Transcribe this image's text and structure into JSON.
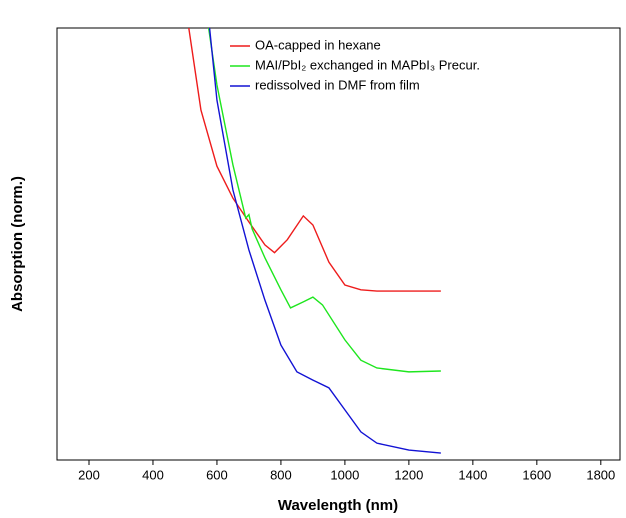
{
  "chart_data": {
    "type": "line",
    "x_label": "Wavelength (nm)",
    "y_label": "Absorption (norm.)",
    "xlim": [
      100,
      1860
    ],
    "xticks": [
      200,
      400,
      600,
      800,
      1000,
      1200,
      1400,
      1600,
      1800
    ],
    "ylim": [
      0,
      1
    ],
    "legend": "top-right",
    "series": [
      {
        "name": "OA-capped in hexane",
        "color": "#ee1c1c",
        "x": [
          512,
          550,
          600,
          650,
          700,
          750,
          780,
          820,
          870,
          900,
          950,
          1000,
          1050,
          1100,
          1200,
          1300
        ],
        "values": [
          1.0,
          0.81,
          0.68,
          0.606,
          0.551,
          0.498,
          0.48,
          0.51,
          0.565,
          0.544,
          0.458,
          0.405,
          0.394,
          0.391,
          0.391,
          0.391
        ]
      },
      {
        "name": "MAI/PbI₂ exchanged in MAPbI₃ Precur.",
        "color": "#1ee61e",
        "x": [
          574,
          600,
          650,
          690,
          700,
          710,
          750,
          800,
          830,
          870,
          900,
          930,
          1000,
          1050,
          1100,
          1200,
          1300
        ],
        "values": [
          1.0,
          0.868,
          0.683,
          0.56,
          0.568,
          0.535,
          0.468,
          0.394,
          0.352,
          0.366,
          0.377,
          0.359,
          0.278,
          0.231,
          0.213,
          0.204,
          0.206
        ]
      },
      {
        "name": "redissolved in DMF from film",
        "color": "#1212d4",
        "x": [
          577,
          600,
          650,
          700,
          750,
          800,
          850,
          900,
          950,
          1000,
          1050,
          1100,
          1200,
          1300
        ],
        "values": [
          1.0,
          0.833,
          0.625,
          0.486,
          0.37,
          0.266,
          0.204,
          0.185,
          0.167,
          0.116,
          0.065,
          0.039,
          0.023,
          0.016
        ]
      }
    ]
  }
}
